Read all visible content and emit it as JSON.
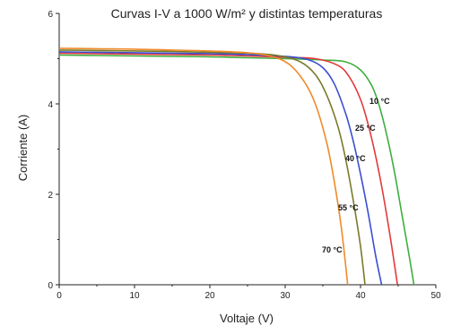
{
  "chart_data": {
    "type": "line",
    "title": "Curvas I-V a 1000 W/m² y distintas temperaturas",
    "xlabel": "Voltaje (V)",
    "ylabel": "Corriente (A)",
    "xlim": [
      0,
      50
    ],
    "ylim": [
      0,
      6
    ],
    "xticks": [
      0,
      10,
      20,
      30,
      40,
      50
    ],
    "yticks": [
      0,
      2,
      4,
      6
    ],
    "grid": false,
    "legend": "inline labels near curves",
    "series": [
      {
        "name": "10 °C",
        "color": "#3fae3f",
        "x": [
          0,
          5,
          10,
          15,
          20,
          25,
          30,
          35,
          38,
          40,
          41.5,
          42.5,
          43.5,
          44.5,
          45.5,
          46.5,
          47.1
        ],
        "y": [
          5.08,
          5.07,
          5.06,
          5.05,
          5.04,
          5.02,
          5.0,
          4.97,
          4.93,
          4.75,
          4.4,
          3.95,
          3.3,
          2.5,
          1.55,
          0.6,
          0
        ]
      },
      {
        "name": "25 °C",
        "color": "#e23a3a",
        "x": [
          0,
          5,
          10,
          15,
          20,
          25,
          30,
          34,
          37,
          38.5,
          40,
          41,
          42,
          43,
          44,
          44.9
        ],
        "y": [
          5.12,
          5.11,
          5.1,
          5.09,
          5.08,
          5.06,
          5.03,
          5.0,
          4.85,
          4.6,
          4.1,
          3.55,
          2.85,
          2.0,
          1.0,
          0
        ]
      },
      {
        "name": "40 °C",
        "color": "#3a4fd0",
        "x": [
          0,
          5,
          10,
          15,
          20,
          25,
          30,
          33,
          35,
          36.5,
          38,
          39,
          40,
          41,
          42,
          42.8
        ],
        "y": [
          5.15,
          5.14,
          5.13,
          5.12,
          5.11,
          5.09,
          5.05,
          4.98,
          4.8,
          4.45,
          3.8,
          3.2,
          2.45,
          1.6,
          0.65,
          0
        ]
      },
      {
        "name": "55 °C",
        "color": "#7a7a2a",
        "x": [
          0,
          5,
          10,
          15,
          20,
          25,
          29,
          32,
          34,
          35.5,
          37,
          38,
          39,
          40,
          40.6
        ],
        "y": [
          5.19,
          5.18,
          5.17,
          5.16,
          5.14,
          5.12,
          5.07,
          4.93,
          4.65,
          4.2,
          3.5,
          2.8,
          1.9,
          0.85,
          0
        ]
      },
      {
        "name": "70 °C",
        "color": "#f08a2a",
        "x": [
          0,
          5,
          10,
          15,
          20,
          25,
          28,
          30.5,
          32.5,
          34,
          35.5,
          36.5,
          37.5,
          38.3
        ],
        "y": [
          5.23,
          5.22,
          5.21,
          5.19,
          5.17,
          5.13,
          5.06,
          4.88,
          4.5,
          4.0,
          3.15,
          2.3,
          1.2,
          0
        ]
      }
    ]
  }
}
